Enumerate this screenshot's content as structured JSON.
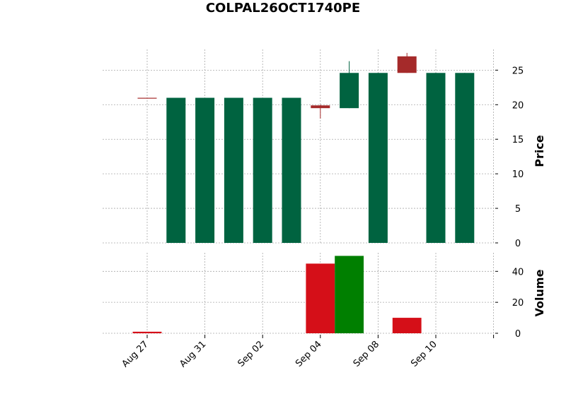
{
  "chart_data": {
    "type": "candlestick",
    "title": "COLPAL26OCT1740PE",
    "x_tick_labels": [
      "Aug 27",
      "Aug 31",
      "Sep 02",
      "Sep 04",
      "Sep 08",
      "Sep 10"
    ],
    "x_tick_indices": [
      0,
      2,
      4,
      6,
      8,
      10
    ],
    "price_panel": {
      "ylabel": "Price",
      "ylim": [
        0,
        28
      ],
      "yticks": [
        0,
        5,
        10,
        15,
        20,
        25
      ],
      "grid": true
    },
    "volume_panel": {
      "ylabel": "Volume",
      "ylim": [
        0,
        52
      ],
      "yticks": [
        0,
        20,
        40
      ],
      "grid": true
    },
    "candles": [
      {
        "index": 0,
        "open": 21.0,
        "high": 21.0,
        "low": 21.0,
        "close": 21.0,
        "color": "#a52a2a"
      },
      {
        "index": 1,
        "open": 0.0,
        "high": 21.0,
        "low": 0.0,
        "close": 21.0,
        "color": "#006340"
      },
      {
        "index": 2,
        "open": 0.0,
        "high": 21.0,
        "low": 0.0,
        "close": 21.0,
        "color": "#006340"
      },
      {
        "index": 3,
        "open": 0.0,
        "high": 21.0,
        "low": 0.0,
        "close": 21.0,
        "color": "#006340"
      },
      {
        "index": 4,
        "open": 0.0,
        "high": 21.0,
        "low": 0.0,
        "close": 21.0,
        "color": "#006340"
      },
      {
        "index": 5,
        "open": 0.0,
        "high": 21.0,
        "low": 0.0,
        "close": 21.0,
        "color": "#006340"
      },
      {
        "index": 6,
        "open": 19.9,
        "high": 20.0,
        "low": 18.0,
        "close": 19.5,
        "color": "#a52a2a"
      },
      {
        "index": 7,
        "open": 19.5,
        "high": 26.3,
        "low": 19.5,
        "close": 24.6,
        "color": "#006340"
      },
      {
        "index": 8,
        "open": 0.0,
        "high": 24.6,
        "low": 0.0,
        "close": 24.6,
        "color": "#006340"
      },
      {
        "index": 9,
        "open": 27.0,
        "high": 27.5,
        "low": 24.6,
        "close": 24.6,
        "color": "#a52a2a"
      },
      {
        "index": 10,
        "open": 0.0,
        "high": 24.6,
        "low": 0.0,
        "close": 24.6,
        "color": "#006340"
      },
      {
        "index": 11,
        "open": 0.0,
        "high": 24.6,
        "low": 0.0,
        "close": 24.6,
        "color": "#006340"
      }
    ],
    "volume": [
      {
        "index": 0,
        "value": 1,
        "color": "#d50f18"
      },
      {
        "index": 6,
        "value": 45,
        "color": "#d50f18"
      },
      {
        "index": 7,
        "value": 50,
        "color": "#007f00"
      },
      {
        "index": 9,
        "value": 10,
        "color": "#d50f18"
      }
    ]
  }
}
